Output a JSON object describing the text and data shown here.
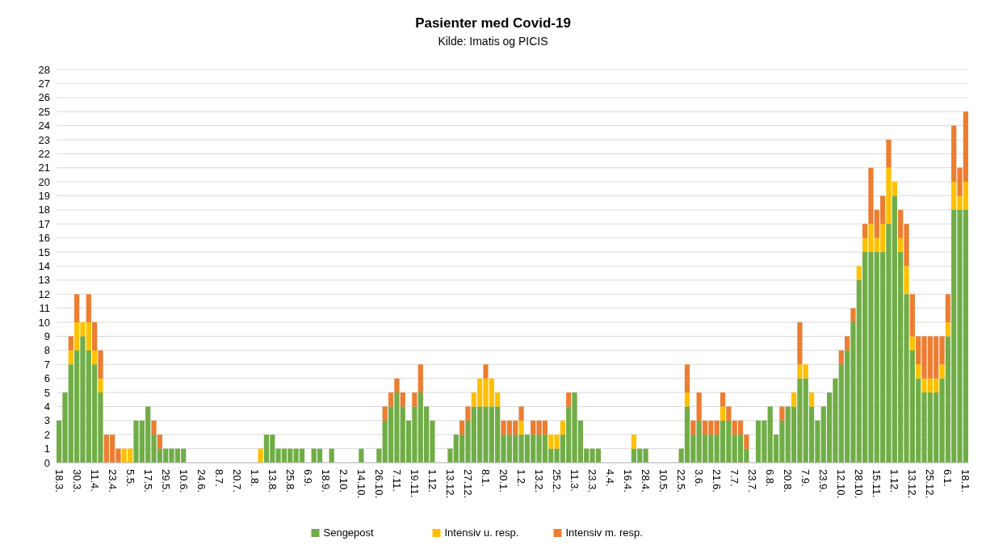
{
  "chart_data": {
    "type": "bar",
    "title": "Pasienter med Covid-19",
    "subtitle": "Kilde: Imatis og PICIS",
    "stacked": true,
    "grid": "y",
    "legend": "bottom",
    "ylim": [
      0,
      28
    ],
    "yticks": [
      0,
      1,
      2,
      3,
      4,
      5,
      6,
      7,
      8,
      9,
      10,
      11,
      12,
      13,
      14,
      15,
      16,
      17,
      18,
      19,
      20,
      21,
      22,
      23,
      24,
      25,
      26,
      27,
      28
    ],
    "categories": [
      "18.3.",
      null,
      null,
      "30.3.",
      null,
      null,
      "11.4.",
      null,
      null,
      "23.4.",
      null,
      null,
      "5.5.",
      null,
      null,
      "17.5.",
      null,
      null,
      "29.5.",
      null,
      null,
      "10.6.",
      null,
      null,
      "24.6.",
      null,
      null,
      "8.7.",
      null,
      null,
      "20.7.",
      null,
      null,
      "1.8.",
      null,
      null,
      "13.8.",
      null,
      null,
      "25.8.",
      null,
      null,
      "6.9.",
      null,
      null,
      "18.9.",
      null,
      null,
      "2.10.",
      null,
      null,
      "14.10.",
      null,
      null,
      "26.10.",
      null,
      null,
      "7.11.",
      null,
      null,
      "19.11.",
      null,
      null,
      "1.12.",
      null,
      null,
      "13.12.",
      null,
      null,
      "27.12.",
      null,
      null,
      "8.1.",
      null,
      null,
      "20.1.",
      null,
      null,
      "1.2.",
      null,
      null,
      "13.2.",
      null,
      null,
      "25.2.",
      null,
      null,
      "11.3.",
      null,
      null,
      "23.3.",
      null,
      null,
      "4.4.",
      null,
      null,
      "16.4.",
      null,
      null,
      "28.4.",
      null,
      null,
      "10.5.",
      null,
      null,
      "22.5.",
      null,
      null,
      "3.6.",
      null,
      null,
      "21.6.",
      null,
      null,
      "7.7.",
      null,
      null,
      "23.7.",
      null,
      null,
      "6.8.",
      null,
      null,
      "20.8.",
      null,
      null,
      "7.9.",
      null,
      null,
      "23.9.",
      null,
      null,
      "12.10.",
      null,
      null,
      "28.10.",
      null,
      null,
      "15.11.",
      null,
      null,
      "1.12.",
      null,
      null,
      "13.12.",
      null,
      null,
      "25.12.",
      null,
      null,
      "6.1.",
      null,
      null,
      "18.1."
    ],
    "series": [
      {
        "name": "Sengepost",
        "color": "#70ad47",
        "values": [
          3,
          5,
          7,
          8,
          9,
          8,
          7,
          5,
          0,
          0,
          0,
          0,
          0,
          3,
          3,
          4,
          2,
          1,
          1,
          1,
          1,
          1,
          0,
          0,
          0,
          0,
          0,
          0,
          0,
          0,
          0,
          0,
          0,
          0,
          0,
          2,
          2,
          1,
          1,
          1,
          1,
          1,
          0,
          1,
          1,
          0,
          1,
          0,
          0,
          0,
          0,
          1,
          0,
          0,
          1,
          3,
          4,
          5,
          4,
          3,
          4,
          5,
          4,
          3,
          0,
          0,
          1,
          2,
          2,
          3,
          4,
          4,
          4,
          4,
          4,
          2,
          2,
          2,
          2,
          2,
          2,
          2,
          2,
          1,
          1,
          2,
          4,
          5,
          3,
          1,
          1,
          1,
          0,
          0,
          0,
          0,
          0,
          1,
          1,
          1,
          0,
          0,
          0,
          0,
          0,
          1,
          4,
          2,
          3,
          2,
          2,
          2,
          3,
          3,
          2,
          2,
          1,
          0,
          3,
          3,
          4,
          2,
          3,
          4,
          4,
          6,
          6,
          4,
          3,
          4,
          5,
          6,
          7,
          8,
          10,
          13,
          15,
          15,
          15,
          15,
          17,
          19,
          15,
          12,
          8,
          6,
          5,
          5,
          5,
          6,
          9,
          18,
          18,
          18
        ]
      },
      {
        "name": "Intensiv u. resp.",
        "color": "#ffc000",
        "values": [
          0,
          0,
          1,
          2,
          1,
          2,
          1,
          1,
          0,
          0,
          0,
          1,
          1,
          0,
          0,
          0,
          0,
          0,
          0,
          0,
          0,
          0,
          0,
          0,
          0,
          0,
          0,
          0,
          0,
          0,
          0,
          0,
          0,
          0,
          1,
          0,
          0,
          0,
          0,
          0,
          0,
          0,
          0,
          0,
          0,
          0,
          0,
          0,
          0,
          0,
          0,
          0,
          0,
          0,
          0,
          0,
          0,
          0,
          0,
          0,
          0,
          0,
          0,
          0,
          0,
          0,
          0,
          0,
          0,
          0,
          1,
          2,
          2,
          2,
          1,
          0,
          0,
          0,
          1,
          0,
          0,
          0,
          0,
          1,
          1,
          1,
          0,
          0,
          0,
          0,
          0,
          0,
          0,
          0,
          0,
          0,
          0,
          1,
          0,
          0,
          0,
          0,
          0,
          0,
          0,
          0,
          1,
          0,
          0,
          0,
          0,
          0,
          1,
          0,
          0,
          0,
          0,
          0,
          0,
          0,
          0,
          0,
          0,
          0,
          1,
          1,
          1,
          1,
          0,
          0,
          0,
          0,
          0,
          0,
          0,
          1,
          1,
          2,
          1,
          2,
          4,
          1,
          1,
          2,
          1,
          1,
          1,
          1,
          1,
          1,
          1,
          2,
          1,
          2
        ]
      },
      {
        "name": "Intensiv m. resp.",
        "color": "#ed7d31",
        "values": [
          0,
          0,
          1,
          2,
          0,
          2,
          2,
          2,
          2,
          2,
          1,
          0,
          0,
          0,
          0,
          0,
          1,
          1,
          0,
          0,
          0,
          0,
          0,
          0,
          0,
          0,
          0,
          0,
          0,
          0,
          0,
          0,
          0,
          0,
          0,
          0,
          0,
          0,
          0,
          0,
          0,
          0,
          0,
          0,
          0,
          0,
          0,
          0,
          0,
          0,
          0,
          0,
          0,
          0,
          0,
          1,
          1,
          1,
          1,
          0,
          1,
          2,
          0,
          0,
          0,
          0,
          0,
          0,
          1,
          1,
          0,
          0,
          1,
          0,
          0,
          1,
          1,
          1,
          1,
          0,
          1,
          1,
          1,
          0,
          0,
          0,
          1,
          0,
          0,
          0,
          0,
          0,
          0,
          0,
          0,
          0,
          0,
          0,
          0,
          0,
          0,
          0,
          0,
          0,
          0,
          0,
          2,
          1,
          2,
          1,
          1,
          1,
          1,
          1,
          1,
          1,
          1,
          0,
          0,
          0,
          0,
          0,
          1,
          0,
          0,
          3,
          0,
          0,
          0,
          0,
          0,
          0,
          1,
          1,
          1,
          0,
          1,
          4,
          2,
          2,
          2,
          0,
          2,
          3,
          3,
          2,
          3,
          3,
          3,
          2,
          2,
          4,
          2,
          5
        ]
      }
    ]
  }
}
